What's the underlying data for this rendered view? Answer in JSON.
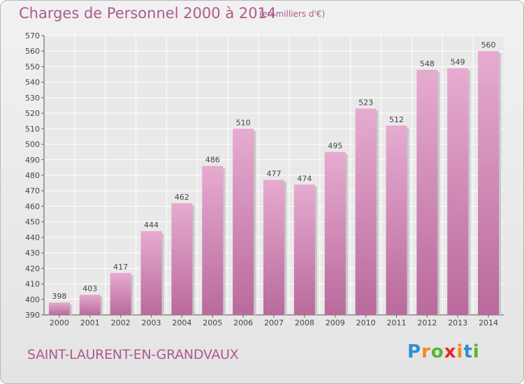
{
  "title": "Charges de Personnel 2000 à 2014",
  "subtitle": "(en milliers d'€)",
  "commune": "SAINT-LAURENT-EN-GRANDVAUX",
  "logo": {
    "text": "Proxiti",
    "letters": [
      {
        "ch": "P",
        "color": "#2e8fd6"
      },
      {
        "ch": "r",
        "color": "#f08a1c"
      },
      {
        "ch": "o",
        "color": "#59b52c"
      },
      {
        "ch": "x",
        "color": "#e8262a"
      },
      {
        "ch": "i",
        "color": "#f08a1c"
      },
      {
        "ch": "t",
        "color": "#2e8fd6"
      },
      {
        "ch": "i",
        "color": "#59b52c"
      }
    ]
  },
  "colors": {
    "bar_top": "#e6abd0",
    "bar_bottom": "#b96a9c",
    "text_accent": "#ad5b8a",
    "grid": "#ffffff"
  },
  "chart_data": {
    "type": "bar",
    "categories": [
      "2000",
      "2001",
      "2002",
      "2003",
      "2004",
      "2005",
      "2006",
      "2007",
      "2008",
      "2009",
      "2010",
      "2011",
      "2012",
      "2013",
      "2014"
    ],
    "values": [
      398,
      403,
      417,
      444,
      462,
      486,
      510,
      477,
      474,
      495,
      523,
      512,
      548,
      549,
      560
    ],
    "ylim": [
      390,
      570
    ],
    "yticks": [
      390,
      400,
      410,
      420,
      430,
      440,
      450,
      460,
      470,
      480,
      490,
      500,
      510,
      520,
      530,
      540,
      550,
      560,
      570
    ],
    "grid": true,
    "data_labels": true
  }
}
